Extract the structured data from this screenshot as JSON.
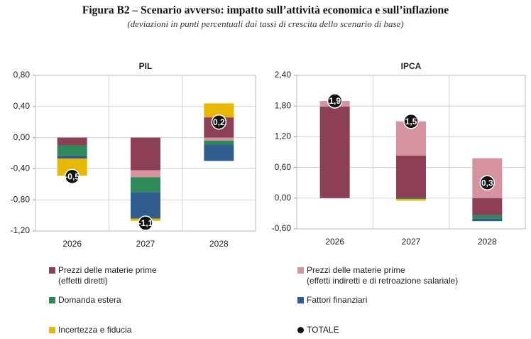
{
  "title": "Figura B2 – Scenario avverso: impatto sull’attività economica e sull’inflazione",
  "subtitle": "(deviazioni in punti percentuali dai tassi di crescita dello scenario di base)",
  "chart_data": [
    {
      "type": "bar",
      "stacked": true,
      "title": "PIL",
      "categories": [
        "2026",
        "2027",
        "2028"
      ],
      "series": [
        {
          "name": "Prezzi delle materie prime\n(effetti diretti)",
          "color": "#8c3f55",
          "values": [
            -0.1,
            -0.42,
            0.26
          ]
        },
        {
          "name": "Prezzi delle materie prime\n(effetti indiretti e di retroazione salariale)",
          "color": "#d4939e",
          "values": [
            0,
            -0.09,
            -0.04
          ]
        },
        {
          "name": "Domanda estera",
          "color": "#2e8b57",
          "values": [
            -0.13,
            -0.19,
            -0.05
          ]
        },
        {
          "name": "Fattori finanziari",
          "color": "#2f5e8e",
          "values": [
            -0.04,
            -0.34,
            -0.21
          ]
        },
        {
          "name": "Incertezza e fiducia",
          "color": "#e8b800",
          "values": [
            -0.22,
            -0.03,
            0.18
          ]
        }
      ],
      "totals": {
        "name": "TOTALE",
        "values": [
          -0.5,
          -1.1,
          0.2
        ],
        "value_labels": [
          "-0,5",
          "-1,1",
          "0,2"
        ]
      },
      "ylim": [
        -1.2,
        0.8
      ],
      "yticks": [
        {
          "value": 0.8,
          "label": "0,80"
        },
        {
          "value": 0.4,
          "label": "0,40"
        },
        {
          "value": 0,
          "label": "0,00"
        },
        {
          "value": -0.4,
          "label": "-0,40"
        },
        {
          "value": -0.8,
          "label": "-0,80"
        },
        {
          "value": -1.2,
          "label": "-1,20"
        }
      ],
      "grid": true
    },
    {
      "type": "bar",
      "stacked": true,
      "title": "IPCA",
      "categories": [
        "2026",
        "2027",
        "2028"
      ],
      "series": [
        {
          "name": "Prezzi delle materie prime\n(effetti diretti)",
          "color": "#8c3f55",
          "values": [
            1.79,
            0.83,
            -0.33
          ]
        },
        {
          "name": "Prezzi delle materie prime\n(effetti indiretti e di retroazione salariale)",
          "color": "#d4939e",
          "values": [
            0.11,
            0.67,
            0.78
          ]
        },
        {
          "name": "Domanda estera",
          "color": "#2e8b57",
          "values": [
            0,
            -0.02,
            -0.07
          ]
        },
        {
          "name": "Fattori finanziari",
          "color": "#2f5e8e",
          "values": [
            0,
            0,
            -0.05
          ]
        },
        {
          "name": "Incertezza e fiducia",
          "color": "#e8b800",
          "values": [
            0,
            -0.03,
            0
          ]
        }
      ],
      "totals": {
        "name": "TOTALE",
        "values": [
          1.9,
          1.5,
          0.3
        ],
        "value_labels": [
          "1,9",
          "1,5",
          "0,3"
        ]
      },
      "ylim": [
        -0.6,
        2.4
      ],
      "yticks": [
        {
          "value": 2.4,
          "label": "2,40"
        },
        {
          "value": 1.8,
          "label": "1,80"
        },
        {
          "value": 1.2,
          "label": "1,20"
        },
        {
          "value": 0.6,
          "label": "0,60"
        },
        {
          "value": 0,
          "label": "0,00"
        },
        {
          "value": -0.6,
          "label": "-0,60"
        }
      ],
      "grid": true
    }
  ]
}
